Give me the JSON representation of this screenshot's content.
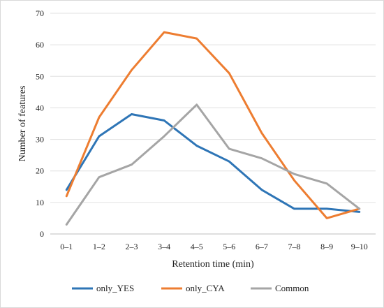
{
  "chart_data": {
    "type": "line",
    "title": "",
    "xlabel": "Retention time (min)",
    "ylabel": "Number of features",
    "categories": [
      "0–1",
      "1–2",
      "2–3",
      "3–4",
      "4–5",
      "5–6",
      "6–7",
      "7–8",
      "8–9",
      "9–10"
    ],
    "ylim": [
      0,
      70
    ],
    "yticks": [
      0,
      10,
      20,
      30,
      40,
      50,
      60,
      70
    ],
    "grid": true,
    "legend_position": "bottom",
    "series": [
      {
        "name": "only_YES",
        "color": "#2E75B6",
        "values": [
          14,
          31,
          38,
          36,
          28,
          23,
          14,
          8,
          8,
          7
        ]
      },
      {
        "name": "only_CYA",
        "color": "#ED7D31",
        "values": [
          12,
          37,
          52,
          64,
          62,
          51,
          32,
          17,
          5,
          8
        ]
      },
      {
        "name": "Common",
        "color": "#A5A5A5",
        "values": [
          3,
          18,
          22,
          31,
          41,
          27,
          24,
          19,
          16,
          8
        ]
      }
    ]
  }
}
